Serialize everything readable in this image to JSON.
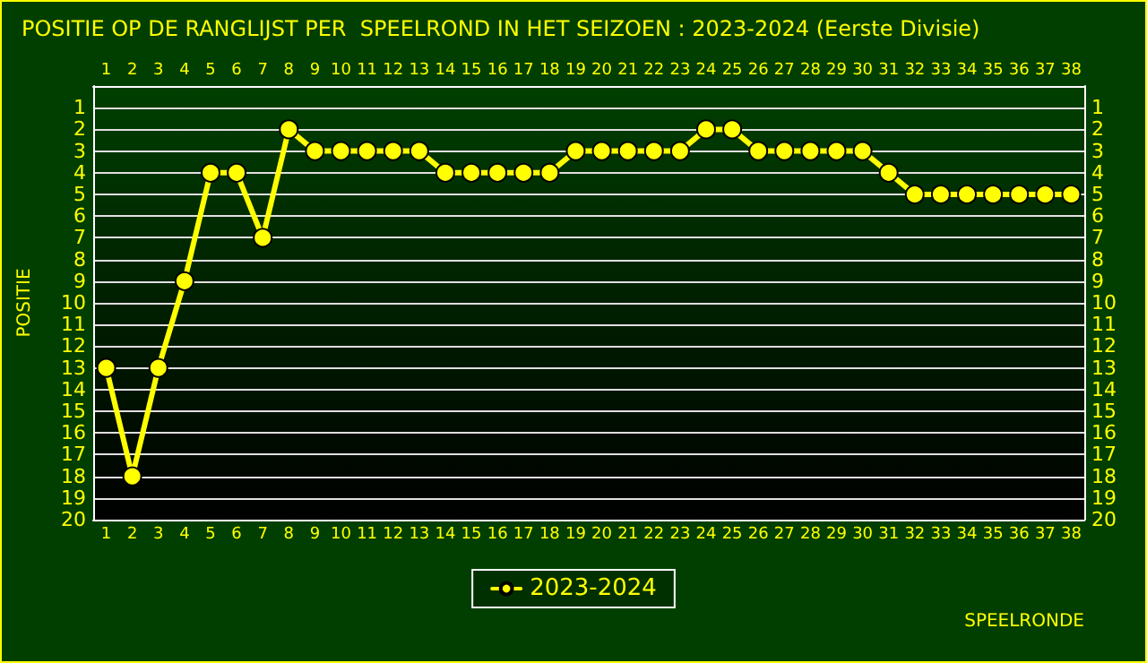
{
  "chart_data": {
    "type": "line",
    "title": "POSITIE OP DE RANGLIJST PER  SPEELROND IN HET SEIZOEN : 2023-2024 (Eerste Divisie)",
    "xlabel": "SPEELRONDE",
    "ylabel": "POSITIE",
    "x": [
      1,
      2,
      3,
      4,
      5,
      6,
      7,
      8,
      9,
      10,
      11,
      12,
      13,
      14,
      15,
      16,
      17,
      18,
      19,
      20,
      21,
      22,
      23,
      24,
      25,
      26,
      27,
      28,
      29,
      30,
      31,
      32,
      33,
      34,
      35,
      36,
      37,
      38
    ],
    "series": [
      {
        "name": "2023-2024",
        "color": "#ffff00",
        "values": [
          13,
          18,
          13,
          9,
          4,
          4,
          7,
          2,
          3,
          3,
          3,
          3,
          3,
          4,
          4,
          4,
          4,
          4,
          3,
          3,
          3,
          3,
          3,
          2,
          2,
          3,
          3,
          3,
          3,
          3,
          4,
          5,
          5,
          5,
          5,
          5,
          5,
          5
        ]
      }
    ],
    "xlim": [
      0.5,
      38.5
    ],
    "xticks": [
      1,
      2,
      3,
      4,
      5,
      6,
      7,
      8,
      9,
      10,
      11,
      12,
      13,
      14,
      15,
      16,
      17,
      18,
      19,
      20,
      21,
      22,
      23,
      24,
      25,
      26,
      27,
      28,
      29,
      30,
      31,
      32,
      33,
      34,
      35,
      36,
      37,
      38
    ],
    "x2lim": [
      0.5,
      38.5
    ],
    "x2ticks": [
      1,
      2,
      3,
      4,
      5,
      6,
      7,
      8,
      9,
      10,
      11,
      12,
      13,
      14,
      15,
      16,
      17,
      18,
      19,
      20,
      21,
      22,
      23,
      24,
      25,
      26,
      27,
      28,
      29,
      30,
      31,
      32,
      33,
      34,
      35,
      36,
      37,
      38
    ],
    "ylim": [
      20,
      0
    ],
    "yticks": [
      1,
      2,
      3,
      4,
      5,
      6,
      7,
      8,
      9,
      10,
      11,
      12,
      13,
      14,
      15,
      16,
      17,
      18,
      19,
      20
    ],
    "y2lim": [
      20,
      0
    ],
    "y2ticks": [
      1,
      2,
      3,
      4,
      5,
      6,
      7,
      8,
      9,
      10,
      11,
      12,
      13,
      14,
      15,
      16,
      17,
      18,
      19,
      20
    ],
    "grid": "y",
    "legend": "bottom",
    "marker": "circle",
    "line_style": "solid"
  }
}
